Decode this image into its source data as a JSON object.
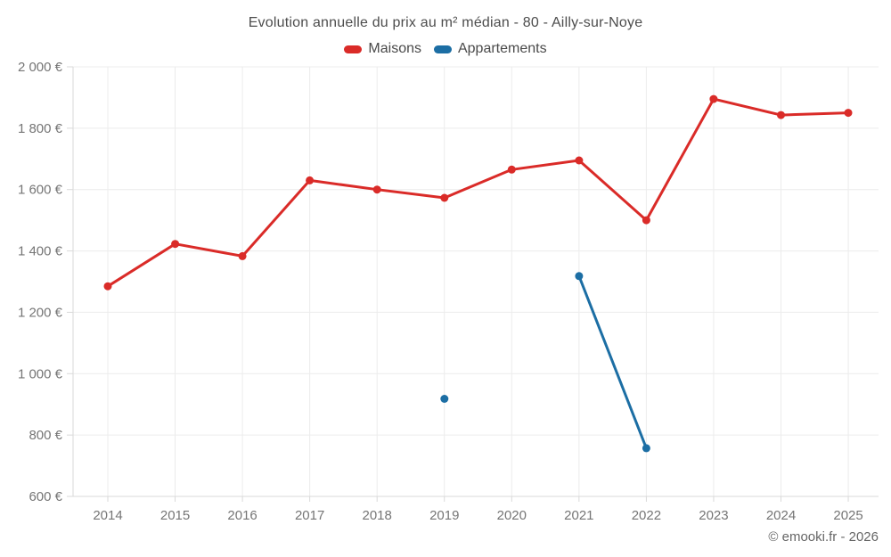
{
  "title": "Evolution annuelle du prix au m² médian - 80 - Ailly-sur-Noye",
  "footer": {
    "copyright": "© emooki.fr - 2026"
  },
  "colors": {
    "maisons": "#da2b28",
    "appartements": "#1c6ea4",
    "grid": "#ececec",
    "axis": "#d9d9d9",
    "tick_label": "#757575",
    "title_text": "#4d4d4d"
  },
  "chart_data": {
    "type": "line",
    "x": [
      2014,
      2015,
      2016,
      2017,
      2018,
      2019,
      2020,
      2021,
      2022,
      2023,
      2024,
      2025
    ],
    "series": [
      {
        "name": "Maisons",
        "color": "#da2b28",
        "values": [
          1285,
          1423,
          1383,
          1630,
          1600,
          1573,
          1665,
          1695,
          1500,
          1895,
          1843,
          1850
        ]
      },
      {
        "name": "Appartements",
        "color": "#1c6ea4",
        "values": [
          null,
          null,
          null,
          null,
          null,
          918,
          null,
          1318,
          757,
          null,
          null,
          null
        ]
      }
    ],
    "ylim": [
      600,
      2000
    ],
    "ytick_step": 200,
    "ytick_labels": [
      "600 €",
      "800 €",
      "1 000 €",
      "1 200 €",
      "1 400 €",
      "1 600 €",
      "1 800 €",
      "2 000 €"
    ],
    "currency_suffix": " €",
    "grid": true,
    "legend_position": "top"
  }
}
